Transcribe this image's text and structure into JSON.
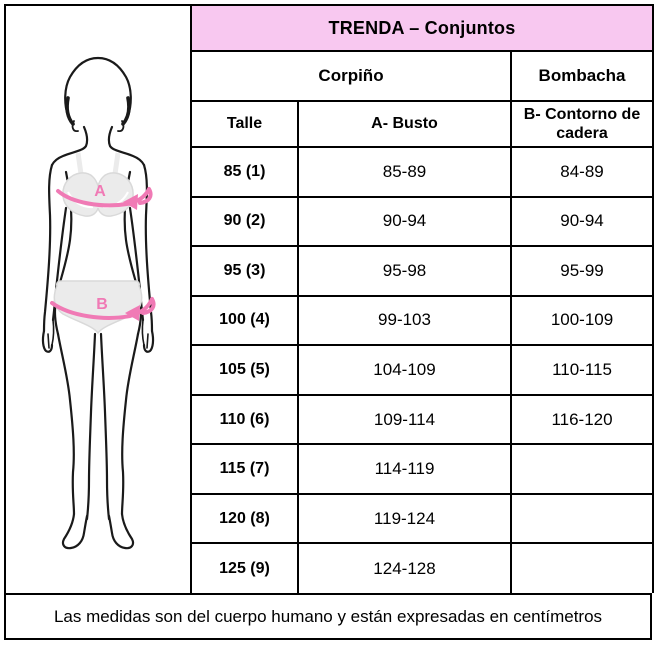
{
  "title": "TRENDA – Conjuntos",
  "table": {
    "group_headers": [
      {
        "label": "Corpiño",
        "colspan": 2
      },
      {
        "label": "Bombacha",
        "colspan": 1
      }
    ],
    "columns": [
      "Talle",
      "A- Busto",
      "B- Contorno de cadera"
    ],
    "rows": [
      {
        "talle": "85 (1)",
        "busto": "85-89",
        "cadera": "84-89"
      },
      {
        "talle": "90 (2)",
        "busto": "90-94",
        "cadera": "90-94"
      },
      {
        "talle": "95 (3)",
        "busto": "95-98",
        "cadera": "95-99"
      },
      {
        "talle": "100 (4)",
        "busto": "99-103",
        "cadera": "100-109"
      },
      {
        "talle": "105 (5)",
        "busto": "104-109",
        "cadera": "110-115"
      },
      {
        "talle": "110 (6)",
        "busto": "109-114",
        "cadera": "116-120"
      },
      {
        "talle": "115 (7)",
        "busto": "114-119",
        "cadera": ""
      },
      {
        "talle": "120 (8)",
        "busto": "119-124",
        "cadera": ""
      },
      {
        "talle": "125 (9)",
        "busto": "124-128",
        "cadera": ""
      }
    ]
  },
  "figure": {
    "bust_label": "A",
    "hip_label": "B"
  },
  "footer": {
    "note": "Las medidas son del cuerpo humano y están expresadas en centímetros"
  },
  "colors": {
    "title_bg": "#f8c8f0",
    "arrow_pink": "#f07ab5",
    "body_line": "#1a1a1a",
    "garment_fill": "#ebebeb",
    "garment_line": "#d9d9d9",
    "border_color": "#000000"
  }
}
